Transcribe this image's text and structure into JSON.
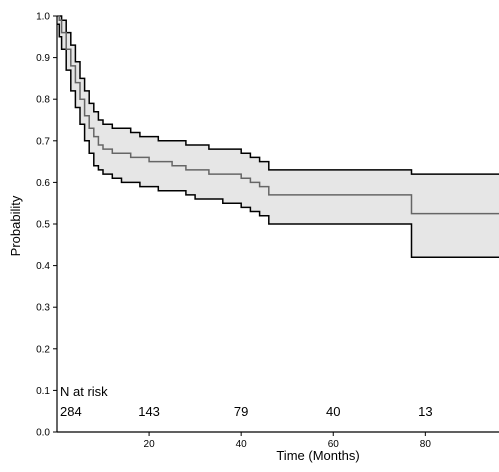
{
  "chart_data": {
    "type": "line",
    "title": "",
    "xlabel": "Time (Months)",
    "ylabel": "Probability",
    "xlim": [
      0,
      96
    ],
    "ylim": [
      0,
      1
    ],
    "x_ticks": [
      20,
      40,
      60,
      80
    ],
    "y_ticks": [
      0.0,
      0.1,
      0.2,
      0.3,
      0.4,
      0.5,
      0.6,
      0.7,
      0.8,
      0.9,
      1.0
    ],
    "y_tick_labels": [
      "0.0",
      "0.1",
      "0.2",
      "0.3",
      "0.4",
      "0.5",
      "0.6",
      "0.7",
      "0.8",
      "0.9",
      "1.0"
    ],
    "grid": false,
    "colors": {
      "estimate": "#666666",
      "ci_band_fill": "#e6e6e6",
      "ci_lines": "#000000",
      "axis": "#000000"
    },
    "series": [
      {
        "role": "estimate",
        "x": [
          0,
          0.5,
          1,
          2,
          3,
          4,
          5,
          6,
          7,
          8,
          9,
          10,
          12,
          14,
          16,
          18,
          20,
          22,
          25,
          28,
          30,
          33,
          36,
          40,
          42,
          44,
          46,
          50,
          60,
          70,
          77,
          96
        ],
        "y": [
          1.0,
          0.99,
          0.96,
          0.92,
          0.88,
          0.84,
          0.8,
          0.76,
          0.73,
          0.71,
          0.69,
          0.68,
          0.67,
          0.67,
          0.66,
          0.66,
          0.65,
          0.65,
          0.64,
          0.63,
          0.63,
          0.62,
          0.62,
          0.61,
          0.6,
          0.59,
          0.57,
          0.57,
          0.57,
          0.57,
          0.525,
          0.525
        ]
      },
      {
        "role": "ci_upper",
        "x": [
          0,
          0.5,
          1,
          2,
          3,
          4,
          5,
          6,
          7,
          8,
          9,
          10,
          12,
          14,
          16,
          18,
          20,
          22,
          25,
          28,
          30,
          33,
          36,
          40,
          42,
          44,
          46,
          50,
          60,
          70,
          77,
          96
        ],
        "y": [
          1.0,
          1.0,
          0.99,
          0.96,
          0.93,
          0.89,
          0.85,
          0.82,
          0.79,
          0.77,
          0.75,
          0.74,
          0.73,
          0.73,
          0.72,
          0.71,
          0.71,
          0.7,
          0.7,
          0.69,
          0.69,
          0.68,
          0.68,
          0.67,
          0.66,
          0.65,
          0.63,
          0.63,
          0.63,
          0.63,
          0.62,
          0.62
        ]
      },
      {
        "role": "ci_lower",
        "x": [
          0,
          0.5,
          1,
          2,
          3,
          4,
          5,
          6,
          7,
          8,
          9,
          10,
          12,
          14,
          16,
          18,
          20,
          22,
          25,
          28,
          30,
          33,
          36,
          40,
          42,
          44,
          46,
          50,
          60,
          70,
          77,
          96
        ],
        "y": [
          0.98,
          0.95,
          0.92,
          0.87,
          0.82,
          0.78,
          0.74,
          0.7,
          0.67,
          0.64,
          0.63,
          0.62,
          0.61,
          0.6,
          0.6,
          0.59,
          0.59,
          0.58,
          0.58,
          0.57,
          0.56,
          0.56,
          0.55,
          0.54,
          0.53,
          0.52,
          0.5,
          0.5,
          0.5,
          0.5,
          0.42,
          0.42
        ]
      }
    ],
    "risk_table": {
      "title": "N at risk",
      "times": [
        0,
        20,
        40,
        60,
        80
      ],
      "counts": [
        "284",
        "143",
        "79",
        "40",
        "13"
      ]
    }
  }
}
